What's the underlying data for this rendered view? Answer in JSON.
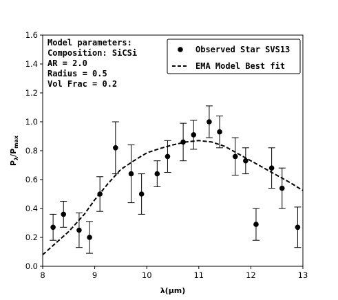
{
  "chart_data": {
    "type": "scatter",
    "xlabel": "λ(μm)",
    "ylabel": "P",
    "ylabel_sub": "λ",
    "ylabel_slash": "/P",
    "ylabel_sub2": "max",
    "xlim": [
      8,
      13
    ],
    "ylim": [
      0,
      1.6
    ],
    "xticks": [
      "8",
      "9",
      "10",
      "11",
      "12",
      "13"
    ],
    "yticks": [
      "0.0",
      "0.2",
      "0.4",
      "0.6",
      "0.8",
      "1.0",
      "1.2",
      "1.4",
      "1.6"
    ],
    "annotation": [
      "Model parameters:",
      "Composition: SiCSi",
      "AR = 2.0",
      "Radius = 0.5",
      "Vol Frac = 0.2"
    ],
    "legend": {
      "placement": "top-right",
      "entries": [
        "Observed Star SVS13",
        "EMA Model Best fit"
      ]
    },
    "series": [
      {
        "name": "Observed Star SVS13",
        "kind": "errorbar",
        "points": [
          {
            "x": 8.2,
            "y": 0.27,
            "err": 0.09
          },
          {
            "x": 8.4,
            "y": 0.36,
            "err": 0.09
          },
          {
            "x": 8.7,
            "y": 0.25,
            "err": 0.12
          },
          {
            "x": 8.9,
            "y": 0.2,
            "err": 0.11
          },
          {
            "x": 9.1,
            "y": 0.5,
            "err": 0.12
          },
          {
            "x": 9.4,
            "y": 0.82,
            "err": 0.18
          },
          {
            "x": 9.7,
            "y": 0.64,
            "err": 0.2
          },
          {
            "x": 9.9,
            "y": 0.5,
            "err": 0.14
          },
          {
            "x": 10.2,
            "y": 0.64,
            "err": 0.09
          },
          {
            "x": 10.4,
            "y": 0.76,
            "err": 0.11
          },
          {
            "x": 10.7,
            "y": 0.86,
            "err": 0.13
          },
          {
            "x": 10.9,
            "y": 0.91,
            "err": 0.1
          },
          {
            "x": 11.2,
            "y": 1.0,
            "err": 0.11
          },
          {
            "x": 11.4,
            "y": 0.93,
            "err": 0.11
          },
          {
            "x": 11.7,
            "y": 0.76,
            "err": 0.13
          },
          {
            "x": 11.9,
            "y": 0.73,
            "err": 0.09
          },
          {
            "x": 12.1,
            "y": 0.29,
            "err": 0.11
          },
          {
            "x": 12.4,
            "y": 0.68,
            "err": 0.14
          },
          {
            "x": 12.6,
            "y": 0.54,
            "err": 0.14
          },
          {
            "x": 12.9,
            "y": 0.27,
            "err": 0.14
          }
        ]
      },
      {
        "name": "EMA Model Best fit",
        "kind": "dashed-line",
        "points": [
          [
            8.0,
            0.08
          ],
          [
            8.5,
            0.24
          ],
          [
            8.8,
            0.36
          ],
          [
            9.0,
            0.46
          ],
          [
            9.25,
            0.57
          ],
          [
            9.5,
            0.67
          ],
          [
            9.75,
            0.73
          ],
          [
            10.0,
            0.785
          ],
          [
            10.25,
            0.815
          ],
          [
            10.5,
            0.84
          ],
          [
            10.75,
            0.86
          ],
          [
            11.0,
            0.87
          ],
          [
            11.25,
            0.86
          ],
          [
            11.5,
            0.83
          ],
          [
            11.75,
            0.78
          ],
          [
            12.0,
            0.73
          ],
          [
            12.25,
            0.68
          ],
          [
            12.5,
            0.63
          ],
          [
            12.75,
            0.58
          ],
          [
            13.0,
            0.525
          ]
        ]
      }
    ],
    "grid": false,
    "colors": {
      "marker": "#000000",
      "line": "#000000",
      "background": "#ffffff"
    }
  }
}
